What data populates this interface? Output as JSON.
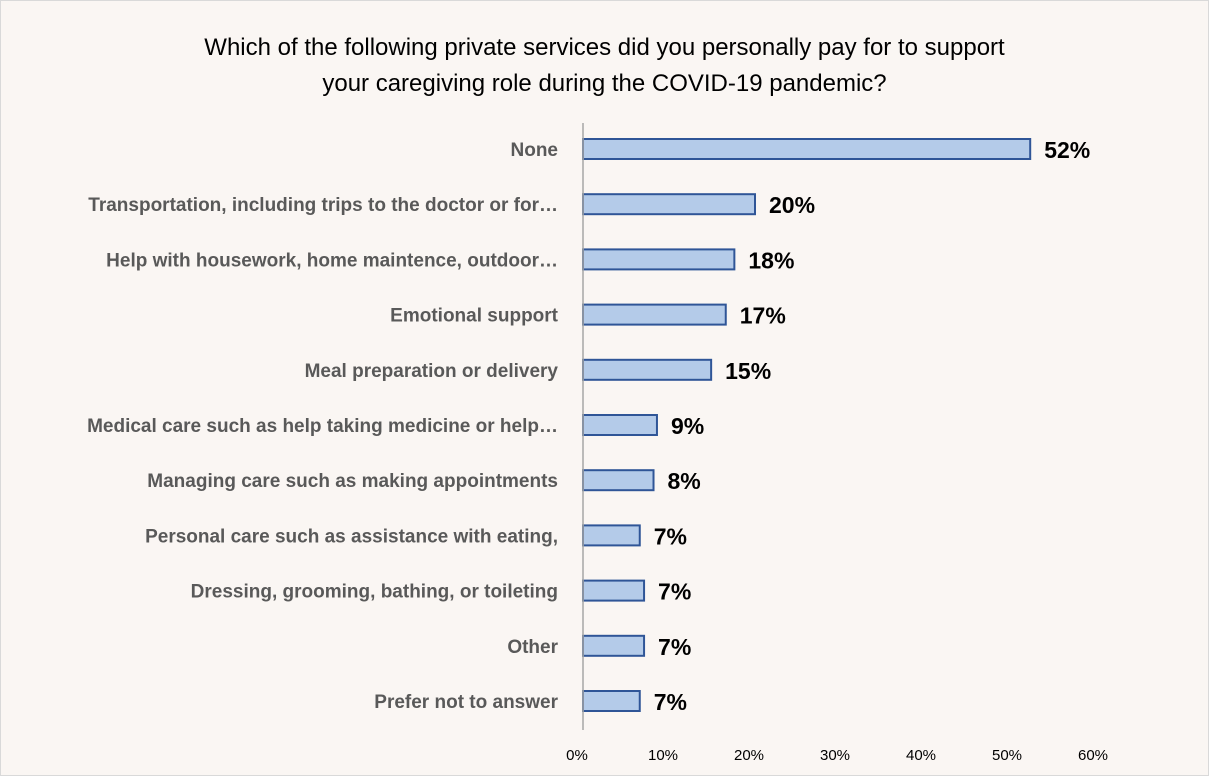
{
  "chart_data": {
    "type": "bar",
    "orientation": "horizontal",
    "title": "Which of the following private services did you personally pay for to support\nyour caregiving role during the COVID-19 pandemic?",
    "categories": [
      "None",
      "Transportation, including trips to the doctor or for…",
      "Help with housework, home maintence, outdoor…",
      "Emotional support",
      "Meal preparation or delivery",
      "Medical care such as help taking medicine or help…",
      "Managing care such as making appointments",
      "Personal care such as assistance with eating,",
      "Dressing, grooming, bathing, or toileting",
      "Other",
      "Prefer not to answer"
    ],
    "values": [
      52,
      20,
      18,
      17,
      15,
      9,
      8,
      7,
      7,
      7,
      7
    ],
    "value_labels": [
      "52%",
      "20%",
      "18%",
      "17%",
      "15%",
      "9%",
      "8%",
      "7%",
      "7%",
      "7%",
      "7%"
    ],
    "bar_values_exact": [
      52,
      20,
      17.6,
      16.6,
      14.9,
      8.6,
      8.2,
      6.6,
      7.1,
      7.1,
      6.6
    ],
    "x_ticks": [
      "0%",
      "10%",
      "20%",
      "30%",
      "40%",
      "50%",
      "60%"
    ],
    "xlim": [
      0,
      60
    ],
    "xlabel": "",
    "ylabel": "",
    "grid": false,
    "legend": "none",
    "colors": {
      "bar_fill": "#b4cbe9",
      "bar_stroke": "#2f5597",
      "axis": "#a6a6a6",
      "background": "#faf6f3"
    }
  }
}
